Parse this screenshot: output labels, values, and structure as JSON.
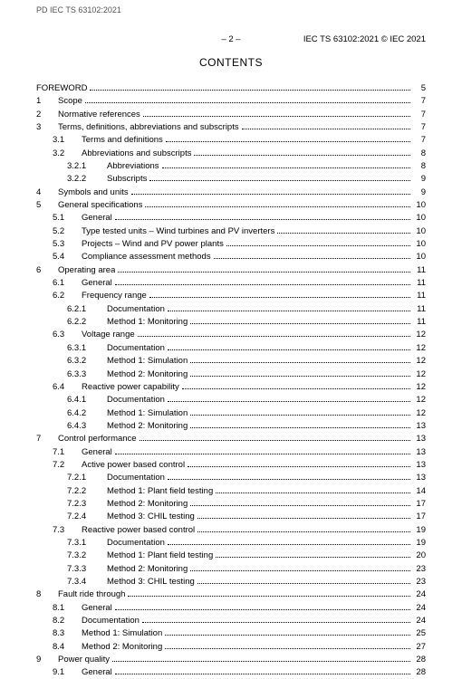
{
  "stamp": "PD IEC TS 63102:2021",
  "page_number_label": "– 2 –",
  "header_right": "IEC TS 63102:2021 © IEC 2021",
  "contents_title": "CONTENTS",
  "entries": [
    {
      "indent": 0,
      "num": "",
      "label": "FOREWORD",
      "page": "5"
    },
    {
      "indent": 1,
      "num": "1",
      "label": "Scope",
      "page": "7"
    },
    {
      "indent": 1,
      "num": "2",
      "label": "Normative references",
      "page": "7"
    },
    {
      "indent": 1,
      "num": "3",
      "label": "Terms, definitions, abbreviations and subscripts",
      "page": "7"
    },
    {
      "indent": 2,
      "num": "3.1",
      "label": "Terms and definitions",
      "page": "7"
    },
    {
      "indent": 2,
      "num": "3.2",
      "label": "Abbreviations and subscripts",
      "page": "8"
    },
    {
      "indent": 3,
      "num": "3.2.1",
      "label": "Abbreviations",
      "page": "8"
    },
    {
      "indent": 3,
      "num": "3.2.2",
      "label": "Subscripts",
      "page": "9"
    },
    {
      "indent": 1,
      "num": "4",
      "label": "Symbols and units",
      "page": "9"
    },
    {
      "indent": 1,
      "num": "5",
      "label": "General specifications",
      "page": "10"
    },
    {
      "indent": 2,
      "num": "5.1",
      "label": "General",
      "page": "10"
    },
    {
      "indent": 2,
      "num": "5.2",
      "label": "Type tested units – Wind turbines and PV inverters",
      "page": "10"
    },
    {
      "indent": 2,
      "num": "5.3",
      "label": "Projects – Wind and PV power plants",
      "page": "10"
    },
    {
      "indent": 2,
      "num": "5.4",
      "label": "Compliance assessment methods",
      "page": "10"
    },
    {
      "indent": 1,
      "num": "6",
      "label": "Operating area",
      "page": "11"
    },
    {
      "indent": 2,
      "num": "6.1",
      "label": "General",
      "page": "11"
    },
    {
      "indent": 2,
      "num": "6.2",
      "label": "Frequency range",
      "page": "11"
    },
    {
      "indent": 3,
      "num": "6.2.1",
      "label": "Documentation",
      "page": "11"
    },
    {
      "indent": 3,
      "num": "6.2.2",
      "label": "Method 1: Monitoring",
      "page": "11"
    },
    {
      "indent": 2,
      "num": "6.3",
      "label": "Voltage range",
      "page": "12"
    },
    {
      "indent": 3,
      "num": "6.3.1",
      "label": "Documentation",
      "page": "12"
    },
    {
      "indent": 3,
      "num": "6.3.2",
      "label": "Method 1: Simulation",
      "page": "12"
    },
    {
      "indent": 3,
      "num": "6.3.3",
      "label": "Method 2: Monitoring",
      "page": "12"
    },
    {
      "indent": 2,
      "num": "6.4",
      "label": "Reactive power capability",
      "page": "12"
    },
    {
      "indent": 3,
      "num": "6.4.1",
      "label": "Documentation",
      "page": "12"
    },
    {
      "indent": 3,
      "num": "6.4.2",
      "label": "Method 1: Simulation",
      "page": "12"
    },
    {
      "indent": 3,
      "num": "6.4.3",
      "label": "Method 2: Monitoring",
      "page": "13"
    },
    {
      "indent": 1,
      "num": "7",
      "label": "Control performance",
      "page": "13"
    },
    {
      "indent": 2,
      "num": "7.1",
      "label": "General",
      "page": "13"
    },
    {
      "indent": 2,
      "num": "7.2",
      "label": "Active power based control",
      "page": "13"
    },
    {
      "indent": 3,
      "num": "7.2.1",
      "label": "Documentation",
      "page": "13"
    },
    {
      "indent": 3,
      "num": "7.2.2",
      "label": "Method 1: Plant field testing",
      "page": "14"
    },
    {
      "indent": 3,
      "num": "7.2.3",
      "label": "Method 2: Monitoring",
      "page": "17"
    },
    {
      "indent": 3,
      "num": "7.2.4",
      "label": "Method 3: CHIL testing",
      "page": "17"
    },
    {
      "indent": 2,
      "num": "7.3",
      "label": "Reactive power based control",
      "page": "19"
    },
    {
      "indent": 3,
      "num": "7.3.1",
      "label": "Documentation",
      "page": "19"
    },
    {
      "indent": 3,
      "num": "7.3.2",
      "label": "Method 1: Plant field testing",
      "page": "20"
    },
    {
      "indent": 3,
      "num": "7.3.3",
      "label": "Method 2: Monitoring",
      "page": "23"
    },
    {
      "indent": 3,
      "num": "7.3.4",
      "label": "Method 3: CHIL testing",
      "page": "23"
    },
    {
      "indent": 1,
      "num": "8",
      "label": "Fault ride through",
      "page": "24"
    },
    {
      "indent": 2,
      "num": "8.1",
      "label": "General",
      "page": "24"
    },
    {
      "indent": 2,
      "num": "8.2",
      "label": "Documentation",
      "page": "24"
    },
    {
      "indent": 2,
      "num": "8.3",
      "label": "Method 1: Simulation",
      "page": "25"
    },
    {
      "indent": 2,
      "num": "8.4",
      "label": "Method 2: Monitoring",
      "page": "27"
    },
    {
      "indent": 1,
      "num": "9",
      "label": "Power quality",
      "page": "28"
    },
    {
      "indent": 2,
      "num": "9.1",
      "label": "General",
      "page": "28"
    }
  ]
}
